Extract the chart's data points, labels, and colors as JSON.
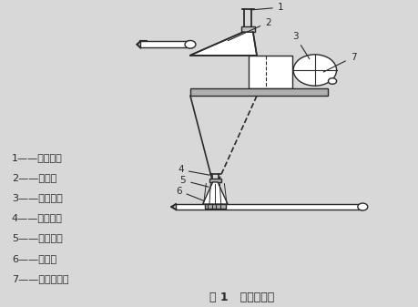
{
  "background_color": "#d8d8d8",
  "title": "图 1   局部密闭罩",
  "title_fontsize": 9,
  "legend_items": [
    "1——排风口；",
    "2——罩体；",
    "3——观察口；",
    "4——排风口；",
    "5——遮尘帘；",
    "6——罩体；",
    "7——产尘设备。"
  ],
  "legend_fontsize": 8,
  "line_color": "#2a2a2a",
  "line_width": 1.0,
  "diagram": {
    "upper_ox": 0.54,
    "upper_oy": 0.04,
    "lower_ox": 0.44,
    "lower_oy": 0.55
  }
}
